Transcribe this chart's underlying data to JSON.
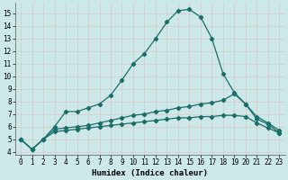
{
  "xlabel": "Humidex (Indice chaleur)",
  "bg_color": "#cce8e8",
  "grid_color": "#b0d4d4",
  "line_color": "#1a6e6a",
  "xlim": [
    -0.5,
    23.5
  ],
  "ylim": [
    3.8,
    15.8
  ],
  "yticks": [
    4,
    5,
    6,
    7,
    8,
    9,
    10,
    11,
    12,
    13,
    14,
    15
  ],
  "xticks": [
    0,
    1,
    2,
    3,
    4,
    5,
    6,
    7,
    8,
    9,
    10,
    11,
    12,
    13,
    14,
    15,
    16,
    17,
    18,
    19,
    20,
    21,
    22,
    23
  ],
  "line1_x": [
    0,
    1,
    2,
    3,
    4,
    5,
    6,
    7,
    8,
    9,
    10,
    11,
    12,
    13,
    14,
    15,
    16,
    17,
    18,
    19,
    20,
    21,
    22,
    23
  ],
  "line1_y": [
    5.0,
    4.2,
    5.0,
    6.0,
    7.2,
    7.2,
    7.5,
    7.8,
    8.5,
    9.7,
    11.0,
    11.8,
    13.0,
    14.3,
    15.2,
    15.3,
    14.7,
    13.0,
    10.2,
    8.7,
    7.8,
    6.6,
    6.2,
    5.5
  ],
  "line2_x": [
    0,
    1,
    2,
    3,
    4,
    5,
    6,
    7,
    8,
    9,
    10,
    11,
    12,
    13,
    14,
    15,
    16,
    17,
    18,
    19,
    20,
    21,
    22,
    23
  ],
  "line2_y": [
    5.0,
    4.2,
    5.0,
    5.8,
    5.9,
    6.0,
    6.1,
    6.3,
    6.5,
    6.7,
    6.9,
    7.0,
    7.2,
    7.3,
    7.5,
    7.6,
    7.8,
    7.9,
    8.1,
    8.6,
    7.8,
    6.8,
    6.3,
    5.7
  ],
  "line3_x": [
    0,
    1,
    2,
    3,
    4,
    5,
    6,
    7,
    8,
    9,
    10,
    11,
    12,
    13,
    14,
    15,
    16,
    17,
    18,
    19,
    20,
    21,
    22,
    23
  ],
  "line3_y": [
    5.0,
    4.2,
    5.0,
    5.6,
    5.7,
    5.8,
    5.9,
    6.0,
    6.1,
    6.2,
    6.3,
    6.4,
    6.5,
    6.6,
    6.7,
    6.7,
    6.8,
    6.8,
    6.9,
    6.9,
    6.8,
    6.3,
    5.9,
    5.5
  ]
}
